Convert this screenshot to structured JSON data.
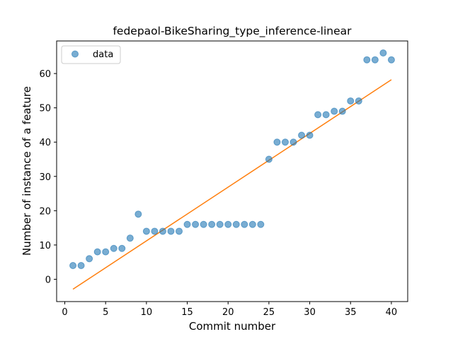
{
  "chart_data": {
    "type": "scatter",
    "title": "fedepaol-BikeSharing_type_inference-linear",
    "xlabel": "Commit number",
    "ylabel": "Number of instance of a feature",
    "xlim": [
      -1,
      42
    ],
    "ylim": [
      -6.5,
      69.5
    ],
    "xticks": [
      0,
      5,
      10,
      15,
      20,
      25,
      30,
      35,
      40
    ],
    "yticks": [
      0,
      10,
      20,
      30,
      40,
      50,
      60
    ],
    "grid": false,
    "legend": {
      "position": "top-left",
      "entries": [
        "data"
      ]
    },
    "series": [
      {
        "name": "data",
        "type": "scatter",
        "color": "#1f77b4",
        "x": [
          1,
          2,
          3,
          4,
          5,
          6,
          7,
          8,
          9,
          10,
          11,
          12,
          13,
          14,
          15,
          16,
          17,
          18,
          19,
          20,
          21,
          22,
          23,
          24,
          25,
          26,
          27,
          28,
          29,
          30,
          31,
          32,
          33,
          34,
          35,
          36,
          37,
          38,
          39,
          40
        ],
        "y": [
          4,
          4,
          6,
          8,
          8,
          9,
          9,
          12,
          19,
          14,
          14,
          14,
          14,
          14,
          16,
          16,
          16,
          16,
          16,
          16,
          16,
          16,
          16,
          16,
          35,
          40,
          40,
          40,
          42,
          42,
          48,
          48,
          49,
          49,
          52,
          52,
          64,
          64,
          66,
          64
        ]
      },
      {
        "type": "line",
        "color": "#ff7f0e",
        "x": [
          1,
          40
        ],
        "y": [
          -2.9,
          58.2
        ]
      }
    ]
  }
}
